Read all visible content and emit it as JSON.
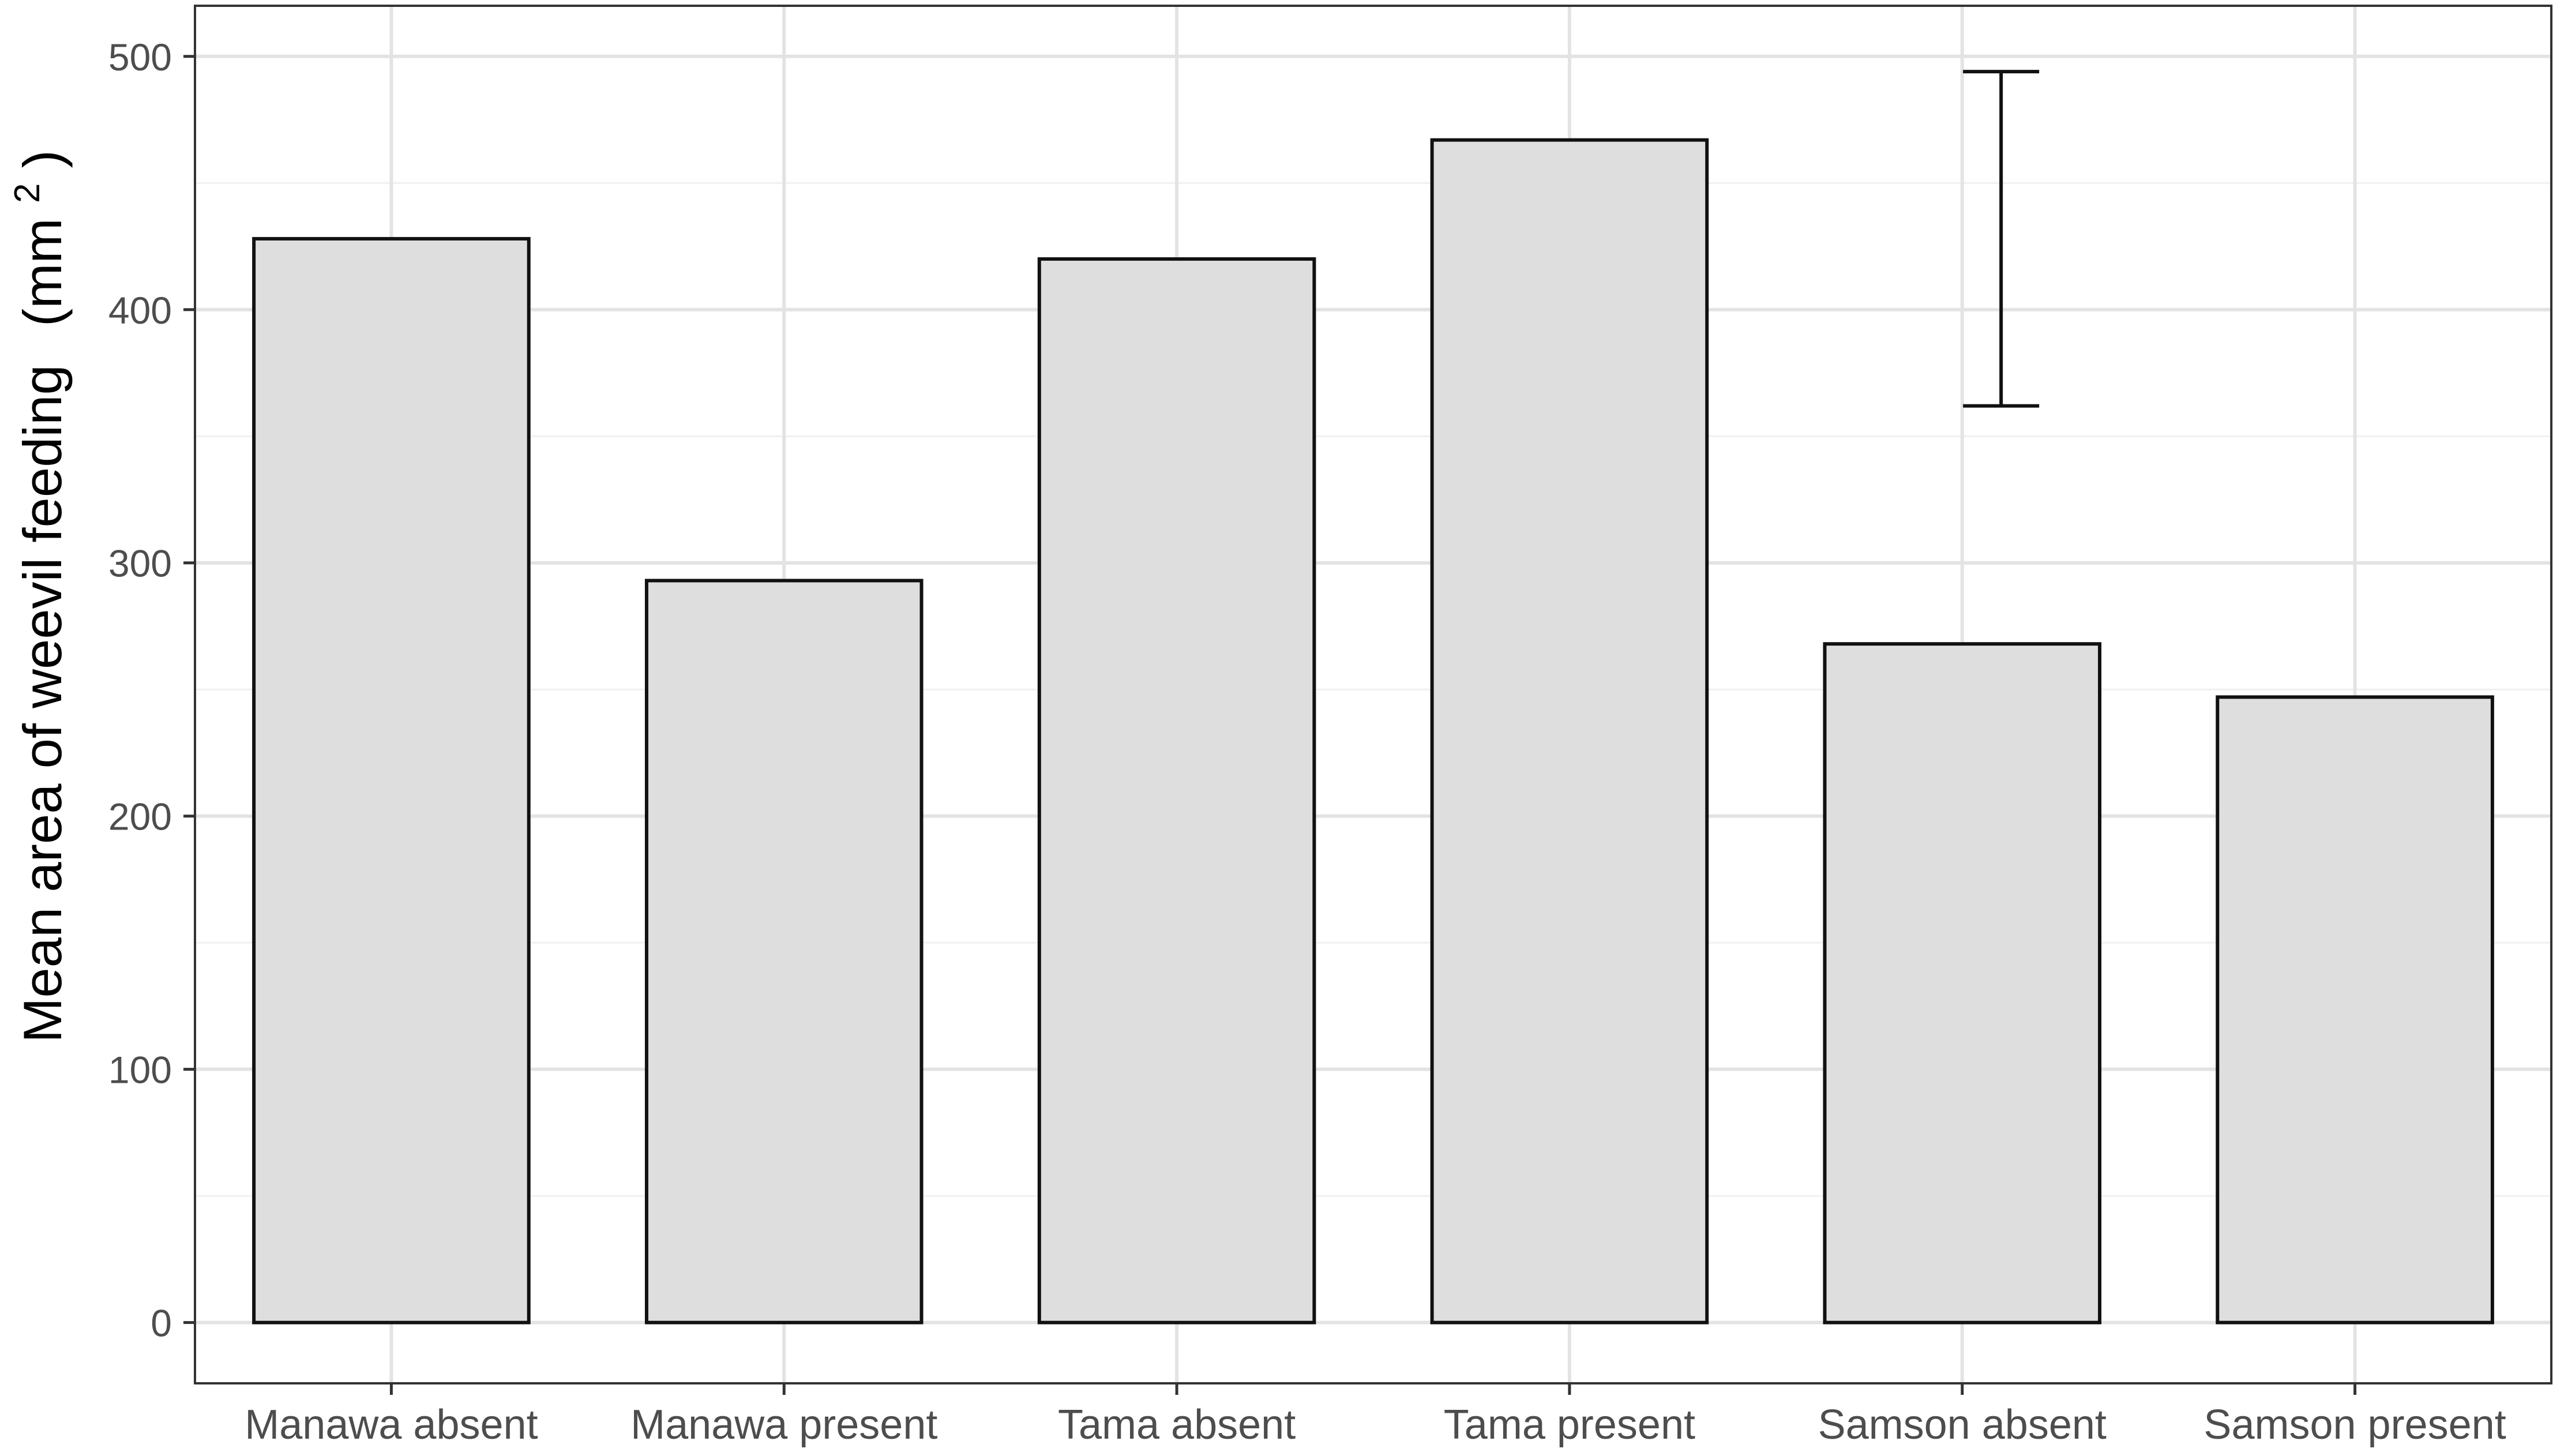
{
  "chart_data": {
    "type": "bar",
    "title": "",
    "xlabel": "",
    "ylabel": {
      "main": "Mean area of weevil feeding",
      "unit_prefix": "(mm",
      "unit_superscript": "2",
      "unit_suffix": ")"
    },
    "categories": [
      "Manawa absent",
      "Manawa present",
      "Tama absent",
      "Tama present",
      "Samson absent",
      "Samson present"
    ],
    "values": [
      428,
      293,
      420,
      467,
      268,
      247
    ],
    "ylim": [
      -24,
      520
    ],
    "yticks": [
      0,
      100,
      200,
      300,
      400,
      500
    ],
    "ytick_labels": [
      "0",
      "100",
      "200",
      "300",
      "400",
      "500"
    ],
    "error_bar": {
      "description": "single reference error bar",
      "lower": 362,
      "upper": 494
    },
    "grid": true,
    "legend": "none",
    "colors": {
      "bar_fill": "#dedede",
      "bar_stroke": "#111111",
      "grid_major": "#e3e3e3",
      "grid_minor": "#f0f0f0",
      "panel_border": "#333333",
      "tick_label": "#4d4d4d",
      "axis_title": "#000000"
    }
  }
}
